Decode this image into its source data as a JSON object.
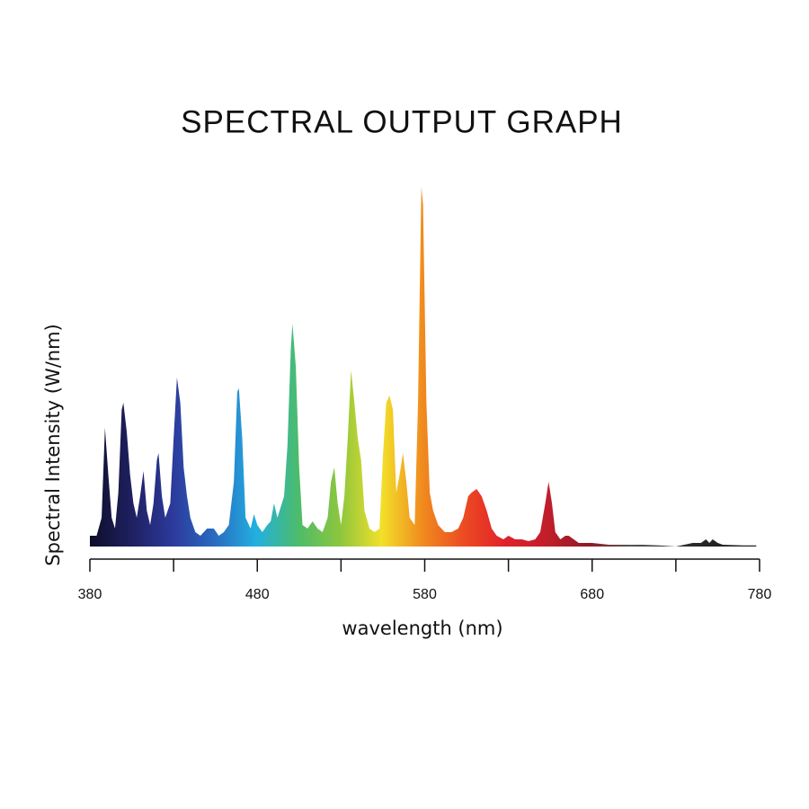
{
  "chart_data": {
    "type": "area",
    "title": "SPECTRAL OUTPUT GRAPH",
    "xlabel": "wavelength (nm)",
    "ylabel": "Spectral Intensity (W/nm)",
    "x": [
      380,
      384,
      387,
      389,
      391,
      393,
      395,
      397,
      399,
      400,
      402,
      404,
      406,
      408,
      410,
      412,
      414,
      416,
      418,
      420,
      421,
      423,
      425,
      428,
      430,
      432,
      434,
      436,
      438,
      440,
      443,
      446,
      450,
      454,
      457,
      460,
      463,
      466,
      468,
      469,
      471,
      473,
      476,
      478,
      480,
      483,
      486,
      488,
      490,
      492,
      494,
      496,
      498,
      500,
      501,
      503,
      505,
      507,
      510,
      513,
      516,
      519,
      522,
      524,
      526,
      528,
      530,
      532,
      534,
      536,
      538,
      540,
      542,
      544,
      547,
      550,
      553,
      555,
      557,
      559,
      561,
      563,
      565,
      567,
      569,
      571,
      574,
      576,
      578,
      579,
      581,
      583,
      585,
      588,
      592,
      596,
      600,
      603,
      606,
      608,
      611,
      614,
      617,
      620,
      623,
      627,
      630,
      634,
      638,
      642,
      646,
      649,
      652,
      654,
      656,
      658,
      661,
      664,
      666,
      669,
      672,
      680,
      690,
      700,
      710,
      720,
      730,
      735,
      740,
      745,
      748,
      750,
      752,
      755,
      758,
      770,
      778
    ],
    "values": [
      3,
      3,
      8,
      33,
      20,
      8,
      5,
      15,
      38,
      40,
      32,
      20,
      12,
      8,
      14,
      21,
      10,
      6,
      12,
      24,
      26,
      14,
      8,
      12,
      30,
      47,
      40,
      22,
      14,
      8,
      4,
      3,
      5,
      5,
      3,
      4,
      6,
      18,
      43,
      44,
      30,
      8,
      5,
      9,
      6,
      4,
      6,
      7,
      12,
      8,
      11,
      14,
      28,
      55,
      62,
      50,
      22,
      6,
      5,
      7,
      5,
      4,
      8,
      18,
      22,
      12,
      6,
      14,
      30,
      49,
      40,
      30,
      24,
      10,
      5,
      4,
      5,
      25,
      40,
      42,
      38,
      15,
      20,
      26,
      18,
      8,
      6,
      40,
      100,
      95,
      40,
      15,
      10,
      6,
      4,
      4,
      5,
      8,
      14,
      15,
      16,
      14,
      10,
      5,
      3,
      2,
      3,
      2,
      2,
      1.5,
      2,
      4,
      12,
      18,
      12,
      4,
      2,
      3,
      3,
      2,
      1,
      1,
      0.5,
      0.5,
      0.5,
      0.3,
      0,
      0.5,
      1,
      1,
      2,
      1,
      2,
      1,
      0.5,
      0.3,
      0.3
    ],
    "colors": [
      "#0e0e2a",
      "#1e2060",
      "#2c3a9c",
      "#2a6cc0",
      "#22b0e0",
      "#4cbc6a",
      "#8cc63e",
      "#f2e02a",
      "#f08a1e",
      "#ec4a22",
      "#e0202a",
      "#c01e2a",
      "#901a24",
      "#555555",
      "#333333",
      "#222222",
      "#222222"
    ],
    "xlim": [
      380,
      780
    ],
    "ylim": [
      0,
      100
    ],
    "xticks": [
      380,
      480,
      580,
      680,
      780
    ],
    "xminorticks": [
      430,
      530,
      630,
      730
    ]
  }
}
